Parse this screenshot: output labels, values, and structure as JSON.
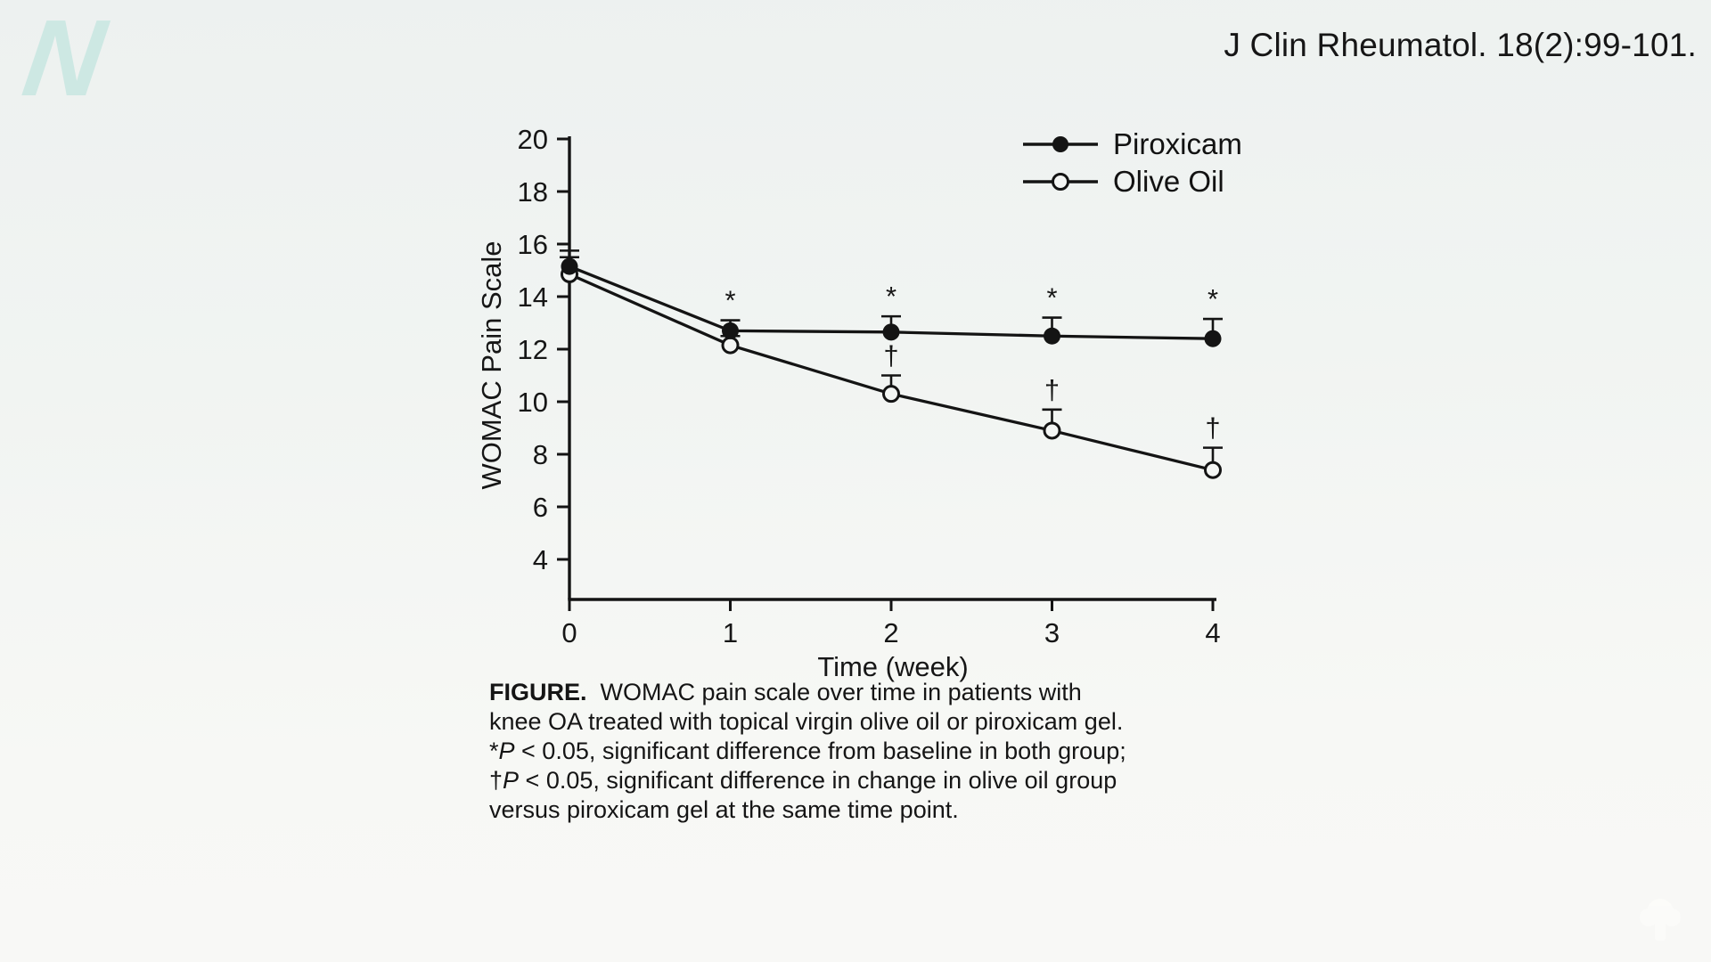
{
  "header": {
    "citation": "J Clin Rheumatol. 18(2):99-101."
  },
  "logo": {
    "letter": "N",
    "color": "#cde8e3",
    "icon": "n-logo"
  },
  "chart_data": {
    "type": "line",
    "title": "",
    "xlabel": "Time (week)",
    "ylabel": "WOMAC Pain Scale",
    "x": [
      0,
      1,
      2,
      3,
      4
    ],
    "xlim": [
      0,
      4
    ],
    "ylim": [
      2.5,
      20.5
    ],
    "yticks": [
      4,
      6,
      8,
      10,
      12,
      14,
      16,
      18,
      20
    ],
    "grid": false,
    "legend_position": "top-right",
    "line_color": "#141414",
    "series": [
      {
        "name": "Piroxicam",
        "marker": "filled-circle",
        "values": [
          15.15,
          12.7,
          12.65,
          12.5,
          12.4
        ],
        "error_up": [
          0.6,
          0.4,
          0.6,
          0.7,
          0.75
        ],
        "point_labels": [
          "",
          "*",
          "*",
          "*",
          "*"
        ]
      },
      {
        "name": "Olive Oil",
        "marker": "open-circle",
        "values": [
          14.85,
          12.15,
          10.3,
          8.9,
          7.4
        ],
        "error_up": [
          0.65,
          0.35,
          0.7,
          0.8,
          0.85
        ],
        "point_labels": [
          "",
          "",
          "†",
          "†",
          "†"
        ]
      }
    ]
  },
  "caption": {
    "lines": [
      [
        {
          "t": "FIGURE.",
          "b": true
        },
        {
          "t": "  WOMAC pain scale over time in patients with"
        }
      ],
      [
        {
          "t": "knee OA treated with topical virgin olive oil or piroxicam gel."
        }
      ],
      [
        {
          "t": "*"
        },
        {
          "t": "P",
          "i": true
        },
        {
          "t": " < 0.05, significant difference from baseline in both group;"
        }
      ],
      [
        {
          "t": "†"
        },
        {
          "t": "P",
          "i": true
        },
        {
          "t": " < 0.05, significant difference in change in olive oil group"
        }
      ],
      [
        {
          "t": "versus piroxicam gel at the same time point."
        }
      ]
    ]
  },
  "footer": {
    "watermark_icon": "lock-watermark-icon"
  }
}
